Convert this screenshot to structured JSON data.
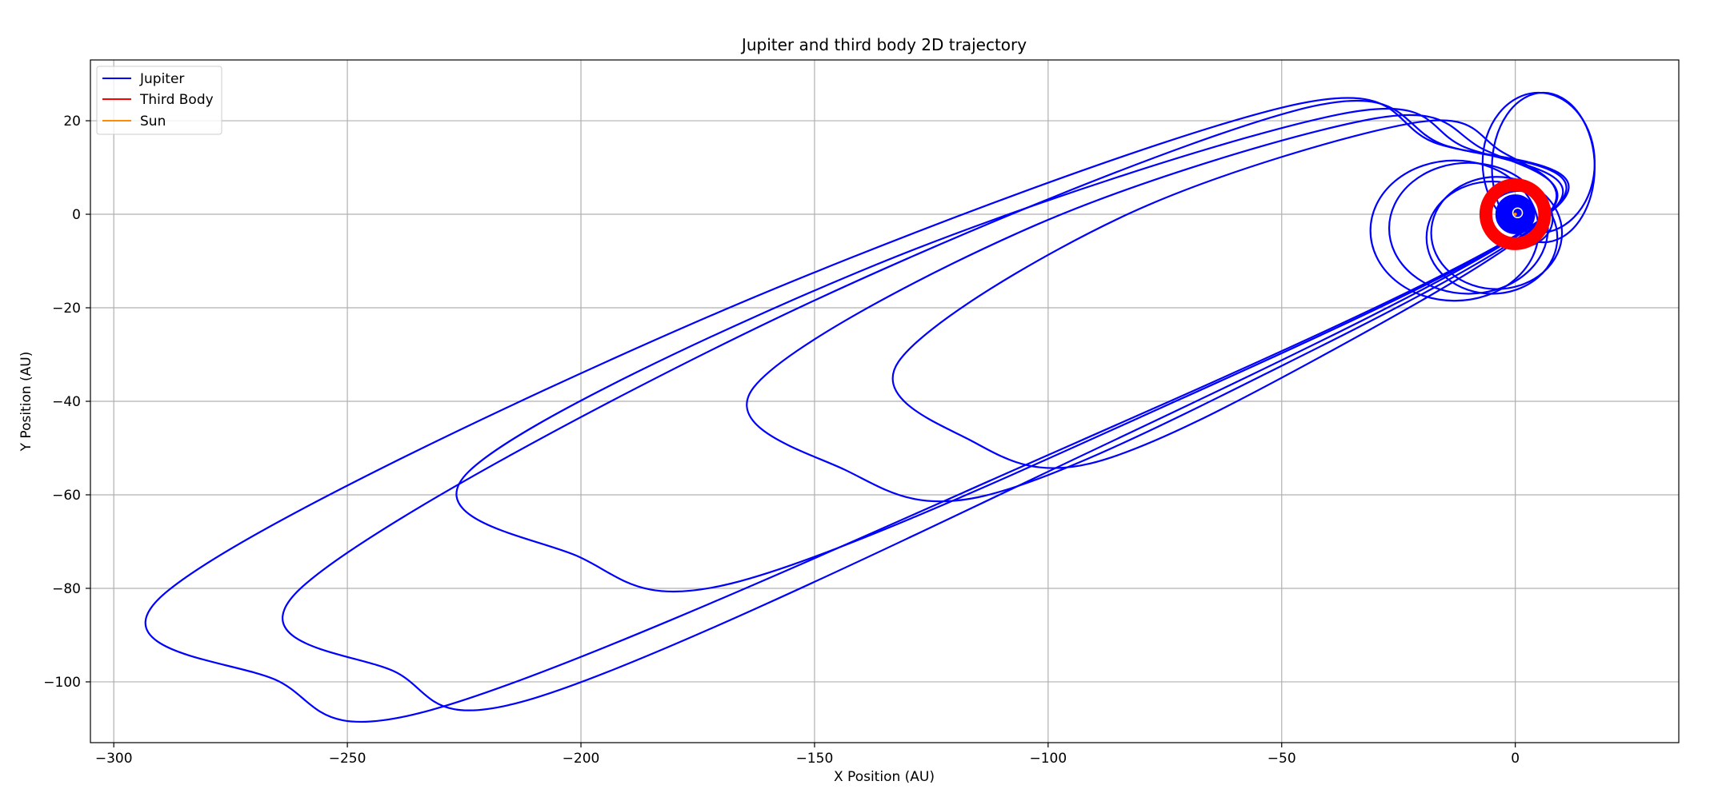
{
  "chart_data": {
    "type": "line",
    "title": "Jupiter and third body 2D trajectory",
    "xlabel": "X Position (AU)",
    "ylabel": "Y Position (AU)",
    "xlim": [
      -305,
      35
    ],
    "ylim": [
      -113,
      33
    ],
    "xticks": [
      -300,
      -250,
      -200,
      -150,
      -100,
      -50,
      0
    ],
    "yticks": [
      20,
      0,
      -20,
      -40,
      -60,
      -80,
      -100
    ],
    "xtick_labels": [
      "−300",
      "−250",
      "−200",
      "−150",
      "−100",
      "−50",
      "0"
    ],
    "ytick_labels": [
      "20",
      "0",
      "−20",
      "−40",
      "−60",
      "−80",
      "−100"
    ],
    "grid": true,
    "legend_position": "top-left",
    "series": [
      {
        "name": "Jupiter",
        "color": "#0000ff",
        "large_loops": [
          {
            "left": [
              -289,
              -81
            ],
            "bottom": [
              -232,
              -106
            ],
            "top": [
              -50,
              22.8
            ]
          },
          {
            "left": [
              -260,
              -80
            ],
            "bottom": [
              -210,
              -103.5
            ],
            "top": [
              -47,
              22.2
            ]
          },
          {
            "left": [
              -224,
              -55
            ],
            "bottom": [
              -168,
              -79
            ],
            "top": [
              -38,
              21.3
            ]
          },
          {
            "left": [
              -163,
              -37
            ],
            "bottom": [
              -114,
              -60.3
            ],
            "top": [
              -30,
              20.5
            ]
          },
          {
            "left": [
              -132,
              -31.5
            ],
            "bottom": [
              -91,
              -53.3
            ],
            "top": [
              -22,
              19.5
            ]
          }
        ],
        "small_loops": [
          {
            "center": [
              -10,
              -3
            ],
            "radii": [
              17,
              14
            ]
          },
          {
            "center": [
              -13,
              -3.5
            ],
            "radii": [
              18,
              15
            ]
          },
          {
            "center": [
              -4,
              -4
            ],
            "radii": [
              14,
              12
            ]
          },
          {
            "center": [
              -5,
              -5
            ],
            "radii": [
              14,
              12
            ]
          },
          {
            "center": [
              5,
              11
            ],
            "radii": [
              12,
              15
            ]
          },
          {
            "center": [
              6,
              10
            ],
            "radii": [
              11,
              16
            ]
          },
          {
            "center": [
              1,
              -1
            ],
            "radii": [
              7,
              6
            ]
          }
        ],
        "inner_ring": {
          "center": [
            0,
            0
          ],
          "radius": 4
        }
      },
      {
        "name": "Third Body",
        "color": "#ff0000",
        "orbit": {
          "center": [
            0,
            0
          ],
          "radius": 6.3
        }
      },
      {
        "name": "Sun",
        "color": "#ff8c00",
        "position": [
          0,
          0
        ]
      }
    ]
  }
}
